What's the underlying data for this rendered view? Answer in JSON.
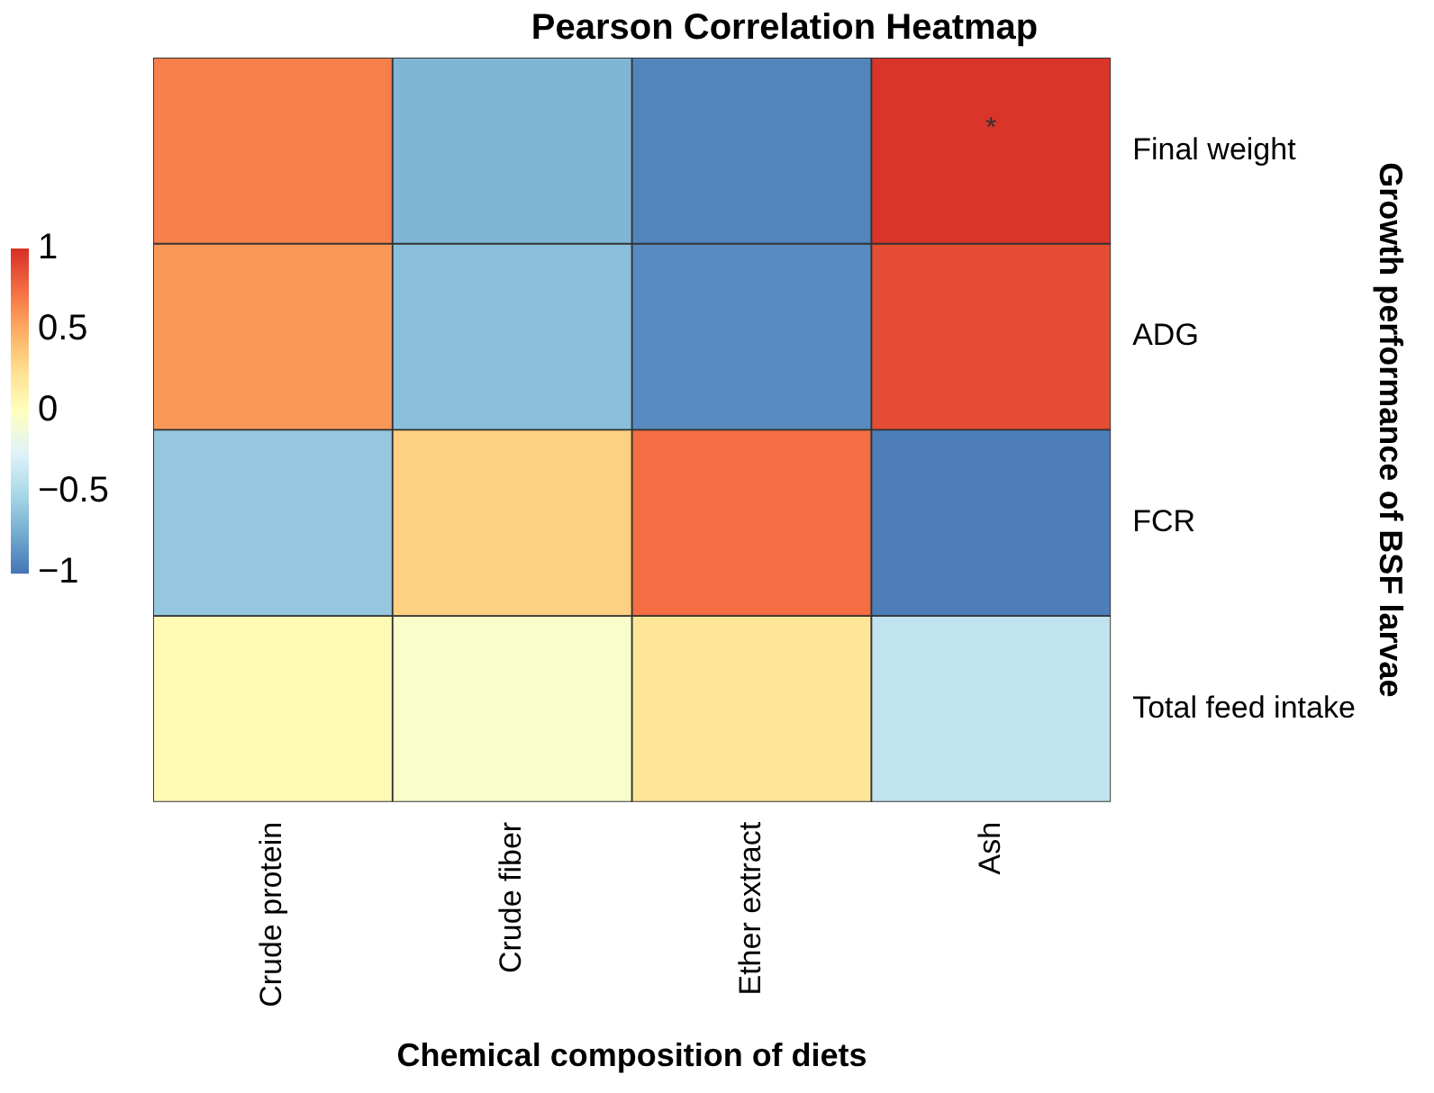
{
  "chart_data": {
    "type": "heatmap",
    "title": "Pearson Correlation Heatmap",
    "xlabel": "Chemical composition of diets",
    "ylabel": "Growth performance of BSF larvae",
    "categories": [
      "Crude protein",
      "Crude fiber",
      "Ether extract",
      "Ash"
    ],
    "y_categories": [
      "Final weight",
      "ADG",
      "FCR",
      "Total feed intake"
    ],
    "cells": [
      [
        0.68,
        -0.7,
        -0.93,
        0.98
      ],
      [
        0.58,
        -0.65,
        -0.9,
        0.88
      ],
      [
        -0.6,
        0.33,
        0.75,
        -0.96
      ],
      [
        0.05,
        -0.05,
        0.2,
        -0.4
      ]
    ],
    "clim": [
      -1,
      1
    ],
    "cticks": [
      {
        "value": 1,
        "label": "1"
      },
      {
        "value": 0.5,
        "label": "0.5"
      },
      {
        "value": 0,
        "label": "0"
      },
      {
        "value": -0.5,
        "label": "−0.5"
      },
      {
        "value": -1,
        "label": "−1"
      }
    ],
    "annotations": [
      "*"
    ]
  }
}
